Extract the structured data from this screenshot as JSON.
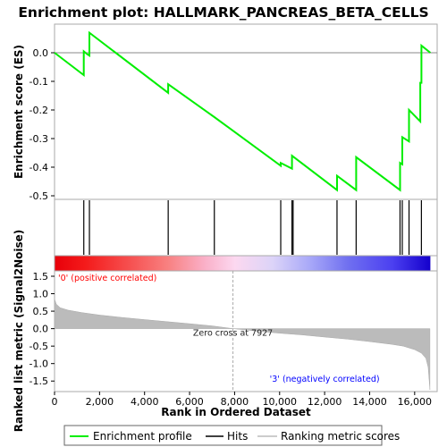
{
  "chart_data": {
    "type": "line",
    "title": "Enrichment plot: HALLMARK_PANCREAS_BETA_CELLS",
    "es_panel": {
      "ylabel": "Enrichment score (ES)",
      "ylim": [
        -0.5,
        0.1
      ],
      "yticks": [
        0.0,
        -0.1,
        -0.2,
        -0.3,
        -0.4,
        -0.5
      ],
      "ytick_labels": [
        "0.0",
        "-0.1",
        "-0.2",
        "-0.3",
        "-0.4",
        "-0.5"
      ],
      "series": [
        {
          "name": "Enrichment profile",
          "color": "#00ee00",
          "x": [
            0,
            1300,
            1300,
            1450,
            1550,
            1550,
            5050,
            5050,
            7100,
            7100,
            10050,
            10050,
            10550,
            10550,
            12550,
            12550,
            13400,
            13400,
            15350,
            15350,
            15450,
            15450,
            15750,
            15750,
            16250,
            16250,
            16300,
            16300,
            16700
          ],
          "y": [
            0.0,
            -0.078,
            0.005,
            -0.005,
            -0.01,
            0.07,
            -0.14,
            -0.11,
            -0.225,
            -0.225,
            -0.395,
            -0.385,
            -0.405,
            -0.36,
            -0.48,
            -0.43,
            -0.48,
            -0.365,
            -0.48,
            -0.385,
            -0.39,
            -0.295,
            -0.31,
            -0.2,
            -0.24,
            -0.105,
            -0.105,
            0.025,
            0.0
          ]
        }
      ]
    },
    "hits": {
      "legend": "Hits",
      "x": [
        1300,
        1550,
        5050,
        7100,
        10050,
        10550,
        10600,
        12550,
        13400,
        15350,
        15450,
        15750,
        16300
      ]
    },
    "metric_panel": {
      "ylabel": "Ranked list metric (Signal2Noise)",
      "xlabel": "Rank in Ordered Dataset",
      "legend": "Ranking metric scores",
      "xlim": [
        0,
        17000
      ],
      "xticks": [
        0,
        2000,
        4000,
        6000,
        8000,
        10000,
        12000,
        14000,
        16000
      ],
      "xtick_labels": [
        "0",
        "2,000",
        "4,000",
        "6,000",
        "8,000",
        "10,000",
        "12,000",
        "14,000",
        "16,000"
      ],
      "ylim": [
        -1.75,
        1.5
      ],
      "yticks": [
        1.5,
        1.0,
        0.5,
        0.0,
        -0.5,
        -1.0,
        -1.5
      ],
      "ytick_labels": [
        "1.5",
        "1.0",
        "0.5",
        "0.0",
        "-0.5",
        "-1.0",
        "-1.5"
      ],
      "curve": {
        "x": [
          0,
          80,
          250,
          600,
          1200,
          2000,
          3000,
          4000,
          5000,
          6000,
          7000,
          7927,
          9000,
          10000,
          11000,
          12000,
          13000,
          14000,
          15000,
          15500,
          16000,
          16300,
          16500,
          16600,
          16680
        ],
        "y": [
          0.85,
          0.7,
          0.6,
          0.53,
          0.46,
          0.39,
          0.32,
          0.26,
          0.2,
          0.14,
          0.08,
          0.0,
          -0.07,
          -0.13,
          -0.18,
          -0.24,
          -0.3,
          -0.37,
          -0.45,
          -0.5,
          -0.6,
          -0.7,
          -0.85,
          -1.1,
          -1.75
        ]
      },
      "zero_cross_label": "Zero cross at 7927",
      "zero_cross_x": 7927,
      "positive_label": "'0' (positive correlated)",
      "negative_label": "'3' (negatively correlated)",
      "positive_color": "#ff0000",
      "negative_color": "#0000ff"
    },
    "max_rank": 16700,
    "legend_labels": [
      "Enrichment profile",
      "Hits",
      "Ranking metric scores"
    ],
    "colors": {
      "profile": "#00ee00",
      "hits": "#000000",
      "metric": "#bbbbbb",
      "frame": "#aaaaaa"
    }
  }
}
